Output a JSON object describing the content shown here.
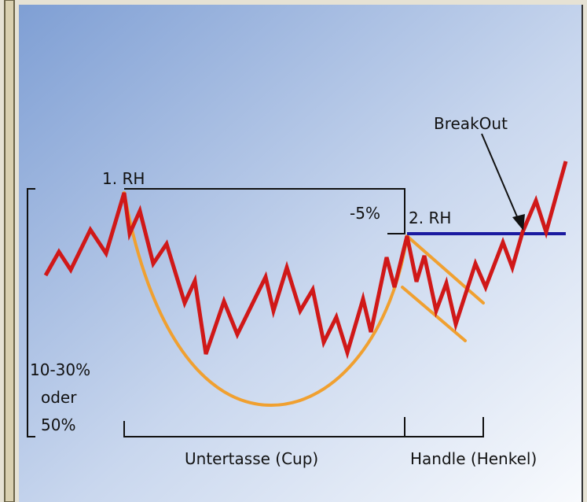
{
  "diagram": {
    "peak_1": "1. RH",
    "dip": "-5%",
    "peak_2": "2. RH",
    "breakout": "BreakOut",
    "depth": [
      "10-30%",
      "oder",
      "50%"
    ],
    "cup": "Untertasse (Cup)",
    "handle": "Handle (Henkel)"
  }
}
